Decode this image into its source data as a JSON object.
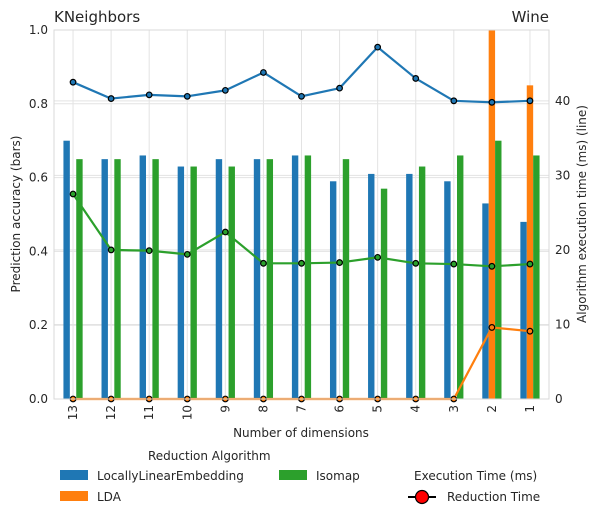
{
  "chart_data": {
    "type": "bar",
    "title_left": "KNeighbors",
    "title_right": "Wine",
    "xlabel": "Number of dimensions",
    "ylabel_left": "Prediction accuracy (bars)",
    "ylabel_right": "Algorithm execution time (ms) (line)",
    "categories": [
      "13",
      "12",
      "11",
      "10",
      "9",
      "8",
      "7",
      "6",
      "5",
      "4",
      "3",
      "2",
      "1"
    ],
    "ylim_left": [
      0,
      1.0
    ],
    "ylim_right": [
      0,
      49.5
    ],
    "yticks_left": [
      "0.0",
      "0.2",
      "0.4",
      "0.6",
      "0.8",
      "1.0"
    ],
    "yticks_right": [
      "0",
      "10",
      "20",
      "30",
      "40"
    ],
    "grid": true,
    "bar_series": [
      {
        "name": "LocallyLinearEmbedding",
        "color": "#1f77b4",
        "values": [
          0.7,
          0.65,
          0.66,
          0.63,
          0.65,
          0.65,
          0.66,
          0.59,
          0.61,
          0.61,
          0.59,
          0.53,
          0.48
        ]
      },
      {
        "name": "LDA",
        "color": "#ff7f0e",
        "values": [
          0,
          0,
          0,
          0,
          0,
          0,
          0,
          0,
          0,
          0,
          0,
          1.0,
          0.85
        ]
      },
      {
        "name": "Isomap",
        "color": "#2ca02c",
        "values": [
          0.65,
          0.65,
          0.65,
          0.63,
          0.63,
          0.65,
          0.66,
          0.65,
          0.57,
          0.63,
          0.66,
          0.7,
          0.66
        ]
      }
    ],
    "line_series": [
      {
        "name": "LocallyLinearEmbedding",
        "color": "#1f77b4",
        "values": [
          42.5,
          40.3,
          40.8,
          40.6,
          41.4,
          43.8,
          40.6,
          41.7,
          47.2,
          43.0,
          40.0,
          39.8,
          40.0
        ]
      },
      {
        "name": "LDA",
        "color": "#ff7f0e",
        "values": [
          0,
          0,
          0,
          0,
          0,
          0,
          0,
          0,
          0,
          0,
          0,
          9.6,
          9.1
        ]
      },
      {
        "name": "Isomap",
        "color": "#2ca02c",
        "values": [
          27.5,
          20.0,
          19.9,
          19.4,
          22.4,
          18.2,
          18.2,
          18.3,
          19.0,
          18.2,
          18.1,
          17.8,
          18.1
        ]
      }
    ],
    "legend": {
      "title": "Reduction Algorithm",
      "items": [
        "LocallyLinearEmbedding",
        "LDA",
        "Isomap"
      ],
      "exec_title": "Execution Time (ms)",
      "exec_item": "Reduction Time",
      "exec_marker_color": "#ff0000",
      "placement": "bottom"
    }
  }
}
